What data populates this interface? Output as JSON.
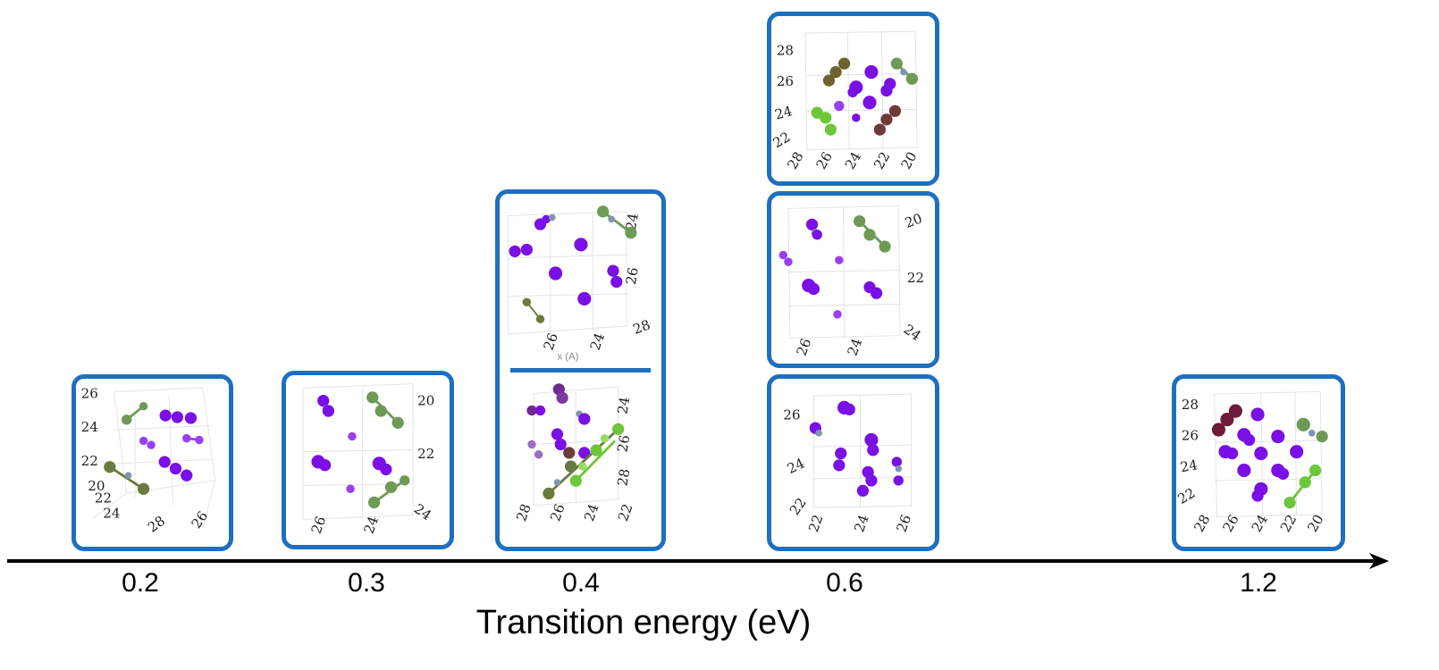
{
  "axis": {
    "title": "Transition energy (eV)",
    "labels": [
      "0.2",
      "0.3",
      "0.4",
      "0.6",
      "1.2"
    ]
  },
  "panels": [
    {
      "energy": "0.2",
      "ticks": [
        "26",
        "24",
        "22",
        "20",
        "22",
        "24",
        "28",
        "26"
      ]
    },
    {
      "energy": "0.3",
      "ticks": [
        "20",
        "22",
        "24",
        "26",
        "24"
      ]
    },
    {
      "energy": "0.4",
      "position": "upper",
      "ticks": [
        "24",
        "26",
        "28",
        "26",
        "24"
      ],
      "axis_caption": "x (A)"
    },
    {
      "energy": "0.4",
      "position": "lower",
      "ticks": [
        "24",
        "26",
        "28",
        "28",
        "26",
        "24",
        "22"
      ]
    },
    {
      "energy": "0.6",
      "position": "top",
      "ticks": [
        "28",
        "26",
        "24",
        "22",
        "28",
        "26",
        "24",
        "22",
        "20"
      ]
    },
    {
      "energy": "0.6",
      "position": "middle",
      "ticks": [
        "20",
        "22",
        "24",
        "26",
        "24"
      ]
    },
    {
      "energy": "0.6",
      "position": "bottom",
      "ticks": [
        "26",
        "24",
        "22",
        "22",
        "24",
        "26"
      ]
    },
    {
      "energy": "1.2",
      "ticks": [
        "28",
        "26",
        "24",
        "22",
        "28",
        "26",
        "24",
        "22",
        "20"
      ]
    }
  ],
  "colors": {
    "frame": "#1f6fbf",
    "purple": "#7a0fe6",
    "purple_light": "#9a3ff0",
    "green_dark": "#6b7a3e",
    "green": "#6e9a55",
    "green_light": "#6ec63a",
    "maroon": "#6e3a3a",
    "olive": "#6e6230",
    "grey_blue": "#7f95b0",
    "axis": "#000000"
  }
}
